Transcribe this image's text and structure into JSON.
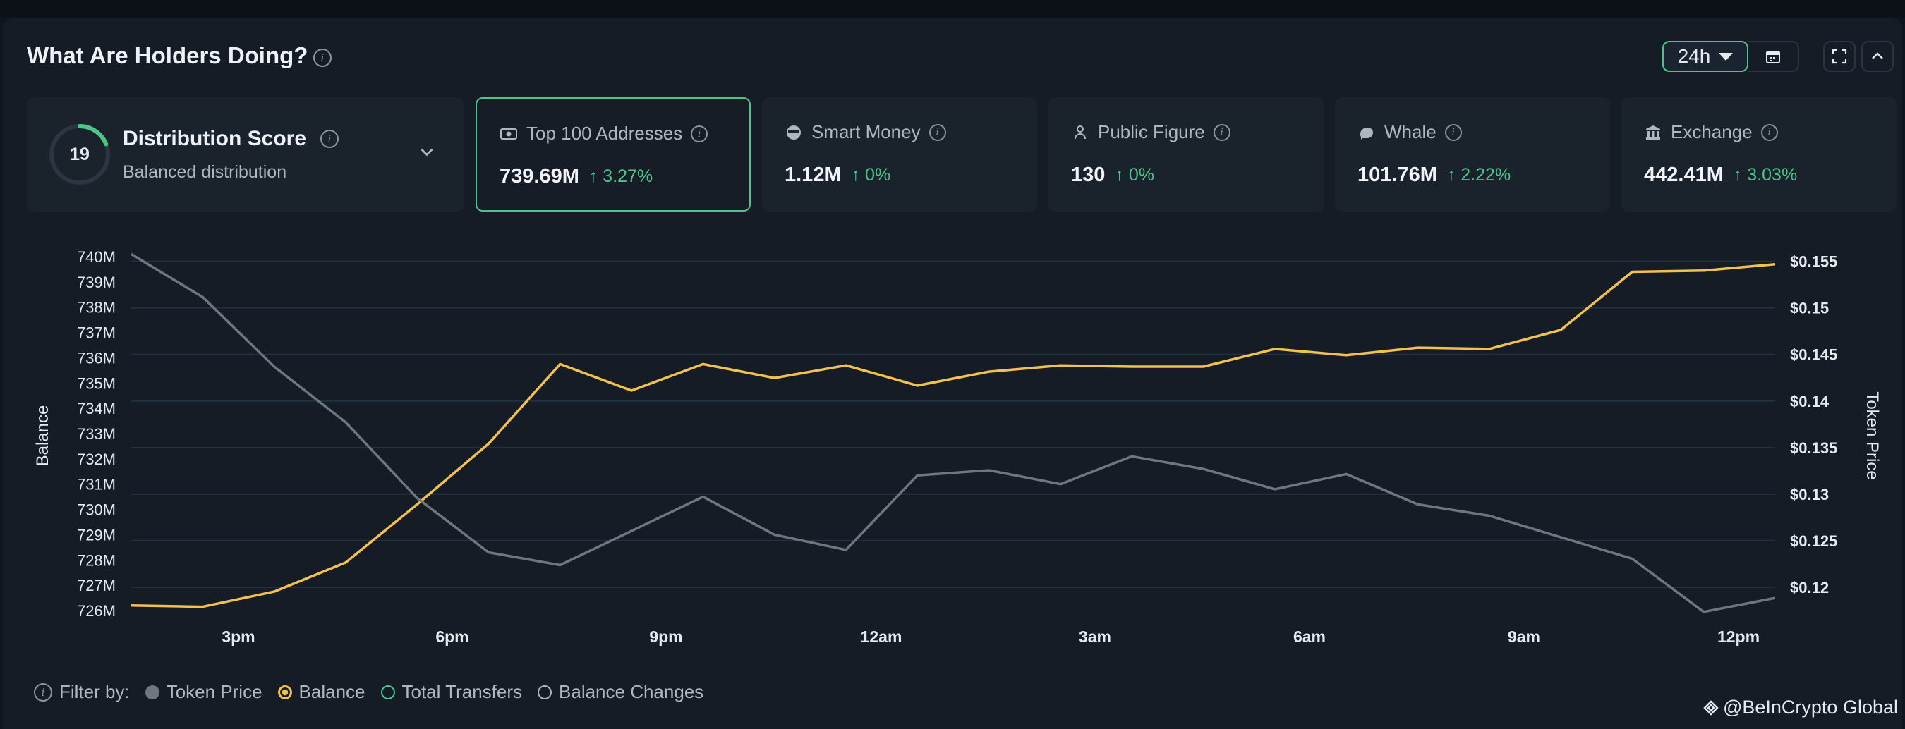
{
  "header": {
    "title": "What Are Holders Doing?",
    "range_label": "24h"
  },
  "distribution": {
    "score": "19",
    "score_fraction": 0.19,
    "title": "Distribution Score",
    "subtitle": "Balanced distribution"
  },
  "cards": [
    {
      "label": "Top 100 Addresses",
      "value": "739.69M",
      "change": "↑ 3.27%",
      "icon": "money-icon"
    },
    {
      "label": "Smart Money",
      "value": "1.12M",
      "change": "↑ 0%",
      "icon": "sunglasses-icon"
    },
    {
      "label": "Public Figure",
      "value": "130",
      "change": "↑ 0%",
      "icon": "person-icon"
    },
    {
      "label": "Whale",
      "value": "101.76M",
      "change": "↑ 2.22%",
      "icon": "whale-icon"
    },
    {
      "label": "Exchange",
      "value": "442.41M",
      "change": "↑ 3.03%",
      "icon": "bank-icon"
    }
  ],
  "chart_data": {
    "type": "line",
    "ylabel": "Balance",
    "y2label": "Token Price",
    "x_ticks": [
      "3pm",
      "6pm",
      "9pm",
      "12am",
      "3am",
      "6am",
      "9am",
      "12pm"
    ],
    "y_ticks": [
      "740M",
      "739M",
      "738M",
      "737M",
      "736M",
      "735M",
      "734M",
      "733M",
      "732M",
      "731M",
      "730M",
      "729M",
      "728M",
      "727M",
      "726M"
    ],
    "y2_ticks": [
      "$0.155",
      "$0.15",
      "$0.145",
      "$0.14",
      "$0.135",
      "$0.13",
      "$0.125",
      "$0.12"
    ],
    "ylim": [
      726,
      740
    ],
    "y2lim": [
      0.1175,
      0.1555
    ],
    "series": [
      {
        "name": "Balance",
        "axis": "left",
        "color": "#f2c14e",
        "values": [
          726.2,
          726.15,
          726.75,
          727.9,
          730.2,
          732.6,
          735.75,
          734.7,
          735.75,
          735.2,
          735.7,
          734.9,
          735.45,
          735.7,
          735.65,
          735.65,
          736.35,
          736.1,
          736.4,
          736.35,
          737.1,
          739.4,
          739.45,
          739.7
        ]
      },
      {
        "name": "Token Price",
        "axis": "left",
        "color": "#6e7680",
        "values": [
          740.1,
          738.4,
          735.65,
          733.45,
          730.45,
          728.3,
          727.8,
          729.15,
          730.5,
          729.0,
          728.4,
          731.35,
          731.55,
          731.0,
          732.1,
          731.6,
          730.8,
          731.4,
          730.2,
          729.75,
          728.9,
          728.05,
          725.95,
          726.5
        ]
      }
    ]
  },
  "filter": {
    "label": "Filter by:",
    "options": [
      {
        "label": "Token Price",
        "state": "filled",
        "color": "#6e7680"
      },
      {
        "label": "Balance",
        "state": "selected",
        "color": "#f2c14e"
      },
      {
        "label": "Total Transfers",
        "state": "empty",
        "color": "#4fc38a"
      },
      {
        "label": "Balance Changes",
        "state": "empty",
        "color": "#aeb6c0"
      }
    ]
  },
  "watermark": "@BeInCrypto Global"
}
